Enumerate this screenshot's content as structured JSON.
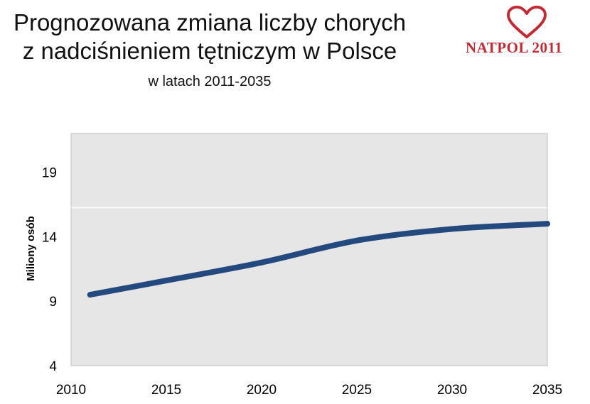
{
  "header": {
    "title_line1": "Prognozowana zmiana liczby chorych",
    "title_line2": "z nadciśnieniem tętniczym w Polsce",
    "subtitle": "w latach 2011-2035"
  },
  "logo": {
    "text": "NATPOL 2011",
    "icon": "heart-icon",
    "color": "#c32a33"
  },
  "chart_data": {
    "type": "line",
    "title": "",
    "xlabel": "",
    "ylabel": "Miliony osób",
    "x": [
      2011,
      2015,
      2020,
      2025,
      2030,
      2035
    ],
    "series": [
      {
        "values": [
          9.5,
          10.6,
          12.0,
          13.7,
          14.6,
          15.0
        ]
      }
    ],
    "xlim": [
      2010,
      2035
    ],
    "ylim": [
      4,
      22
    ],
    "yticks": [
      4,
      9,
      14,
      19
    ],
    "xticks": [
      2010,
      2015,
      2020,
      2025,
      2030,
      2035
    ],
    "grid": true,
    "line_color": "#24497e",
    "plot_background": "#e6e6e6"
  }
}
